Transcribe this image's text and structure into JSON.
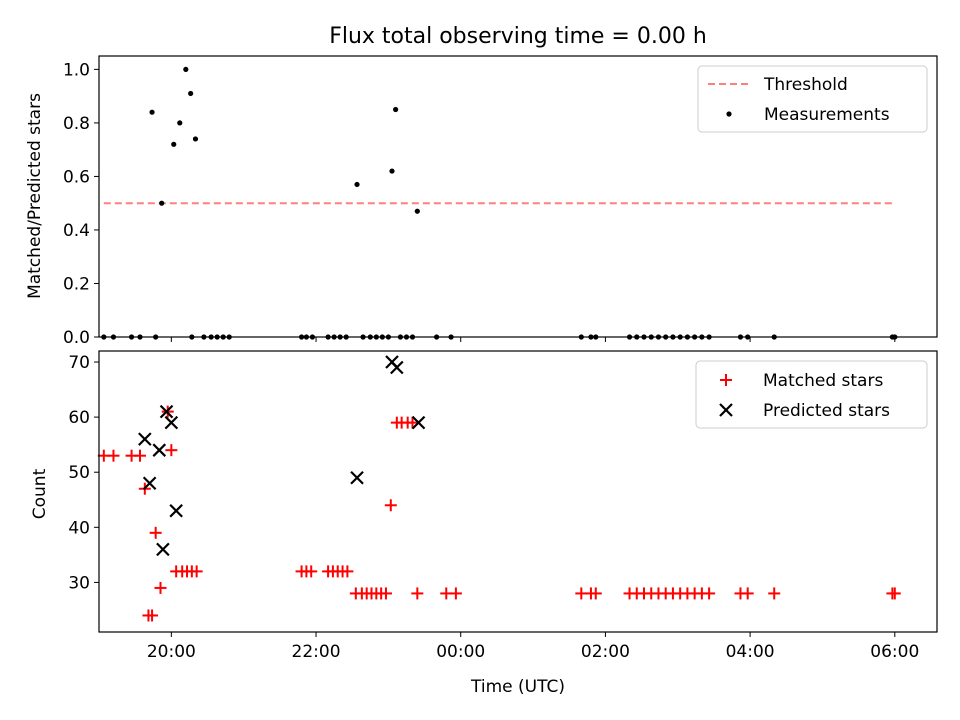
{
  "title": "Flux total observing time = 0.00 h",
  "chart_data": [
    {
      "type": "scatter",
      "ylabel": "Matched/Predicted stars",
      "xlim": [
        "19:00",
        "06:35"
      ],
      "ylim": [
        0,
        1.05
      ],
      "yticks": [
        "0.0",
        "0.2",
        "0.4",
        "0.6",
        "0.8",
        "1.0"
      ],
      "grid": false,
      "legend_position": "top-right",
      "threshold": {
        "name": "Threshold",
        "value": 0.5,
        "x_range": [
          "19:04",
          "06:00"
        ],
        "color": "#ff7f7f"
      },
      "series": [
        {
          "name": "Measurements",
          "color": "#000000",
          "points": [
            [
              "19:04",
              0.0
            ],
            [
              "19:12",
              0.0
            ],
            [
              "19:27",
              0.0
            ],
            [
              "19:34",
              0.0
            ],
            [
              "19:44",
              0.84
            ],
            [
              "19:52",
              0.5
            ],
            [
              "19:47",
              0.0
            ],
            [
              "20:02",
              0.72
            ],
            [
              "20:07",
              0.8
            ],
            [
              "20:12",
              1.0
            ],
            [
              "20:16",
              0.91
            ],
            [
              "20:20",
              0.74
            ],
            [
              "20:17",
              0.0
            ],
            [
              "20:27",
              0.0
            ],
            [
              "20:33",
              0.0
            ],
            [
              "20:38",
              0.0
            ],
            [
              "20:43",
              0.0
            ],
            [
              "20:48",
              0.0
            ],
            [
              "21:48",
              0.0
            ],
            [
              "21:52",
              0.0
            ],
            [
              "21:57",
              0.0
            ],
            [
              "22:10",
              0.0
            ],
            [
              "22:15",
              0.0
            ],
            [
              "22:20",
              0.0
            ],
            [
              "22:25",
              0.0
            ],
            [
              "22:34",
              0.57
            ],
            [
              "22:39",
              0.0
            ],
            [
              "22:45",
              0.0
            ],
            [
              "22:50",
              0.0
            ],
            [
              "22:55",
              0.0
            ],
            [
              "23:00",
              0.0
            ],
            [
              "23:03",
              0.62
            ],
            [
              "23:06",
              0.85
            ],
            [
              "23:10",
              0.0
            ],
            [
              "23:15",
              0.0
            ],
            [
              "23:20",
              0.0
            ],
            [
              "23:24",
              0.47
            ],
            [
              "23:40",
              0.0
            ],
            [
              "23:52",
              0.0
            ],
            [
              "01:40",
              0.0
            ],
            [
              "01:48",
              0.0
            ],
            [
              "01:52",
              0.0
            ],
            [
              "02:20",
              0.0
            ],
            [
              "02:26",
              0.0
            ],
            [
              "02:32",
              0.0
            ],
            [
              "02:38",
              0.0
            ],
            [
              "02:44",
              0.0
            ],
            [
              "02:50",
              0.0
            ],
            [
              "02:56",
              0.0
            ],
            [
              "03:02",
              0.0
            ],
            [
              "03:08",
              0.0
            ],
            [
              "03:14",
              0.0
            ],
            [
              "03:20",
              0.0
            ],
            [
              "03:26",
              0.0
            ],
            [
              "03:52",
              0.0
            ],
            [
              "03:58",
              0.0
            ],
            [
              "04:20",
              0.0
            ],
            [
              "05:58",
              0.0
            ],
            [
              "06:00",
              0.0
            ]
          ]
        }
      ]
    },
    {
      "type": "scatter",
      "xlabel": "Time (UTC)",
      "ylabel": "Count",
      "xlim": [
        "19:00",
        "06:35"
      ],
      "ylim": [
        21,
        72
      ],
      "yticks": [
        "30",
        "40",
        "50",
        "60",
        "70"
      ],
      "xticks": [
        "20:00",
        "22:00",
        "00:00",
        "02:00",
        "04:00",
        "06:00"
      ],
      "grid": false,
      "legend_position": "top-right",
      "series": [
        {
          "name": "Matched stars",
          "marker": "plus",
          "color": "#ff0000",
          "points": [
            [
              "19:04",
              53
            ],
            [
              "19:12",
              53
            ],
            [
              "19:27",
              53
            ],
            [
              "19:34",
              53
            ],
            [
              "19:38",
              47
            ],
            [
              "19:41",
              24
            ],
            [
              "19:44",
              24
            ],
            [
              "19:47",
              39
            ],
            [
              "19:51",
              29
            ],
            [
              "19:57",
              61
            ],
            [
              "20:00",
              54
            ],
            [
              "20:04",
              32
            ],
            [
              "20:09",
              32
            ],
            [
              "20:13",
              32
            ],
            [
              "20:17",
              32
            ],
            [
              "20:21",
              32
            ],
            [
              "21:48",
              32
            ],
            [
              "21:52",
              32
            ],
            [
              "21:56",
              32
            ],
            [
              "22:10",
              32
            ],
            [
              "22:14",
              32
            ],
            [
              "22:18",
              32
            ],
            [
              "22:22",
              32
            ],
            [
              "22:26",
              32
            ],
            [
              "22:33",
              28
            ],
            [
              "22:38",
              28
            ],
            [
              "22:42",
              28
            ],
            [
              "22:46",
              28
            ],
            [
              "22:50",
              28
            ],
            [
              "22:54",
              28
            ],
            [
              "22:58",
              28
            ],
            [
              "23:02",
              44
            ],
            [
              "23:07",
              59
            ],
            [
              "23:11",
              59
            ],
            [
              "23:16",
              59
            ],
            [
              "23:20",
              59
            ],
            [
              "23:24",
              28
            ],
            [
              "23:48",
              28
            ],
            [
              "23:56",
              28
            ],
            [
              "01:40",
              28
            ],
            [
              "01:48",
              28
            ],
            [
              "01:52",
              28
            ],
            [
              "02:20",
              28
            ],
            [
              "02:26",
              28
            ],
            [
              "02:32",
              28
            ],
            [
              "02:38",
              28
            ],
            [
              "02:44",
              28
            ],
            [
              "02:50",
              28
            ],
            [
              "02:56",
              28
            ],
            [
              "03:02",
              28
            ],
            [
              "03:08",
              28
            ],
            [
              "03:14",
              28
            ],
            [
              "03:20",
              28
            ],
            [
              "03:26",
              28
            ],
            [
              "03:52",
              28
            ],
            [
              "03:58",
              28
            ],
            [
              "04:20",
              28
            ],
            [
              "05:58",
              28
            ],
            [
              "06:00",
              28
            ]
          ]
        },
        {
          "name": "Predicted stars",
          "marker": "x",
          "color": "#000000",
          "points": [
            [
              "19:38",
              56
            ],
            [
              "19:42",
              48
            ],
            [
              "19:50",
              54
            ],
            [
              "19:53",
              36
            ],
            [
              "19:56",
              61
            ],
            [
              "20:00",
              59
            ],
            [
              "20:04",
              43
            ],
            [
              "22:34",
              49
            ],
            [
              "23:03",
              70
            ],
            [
              "23:07",
              69
            ],
            [
              "23:25",
              59
            ]
          ]
        }
      ]
    }
  ]
}
